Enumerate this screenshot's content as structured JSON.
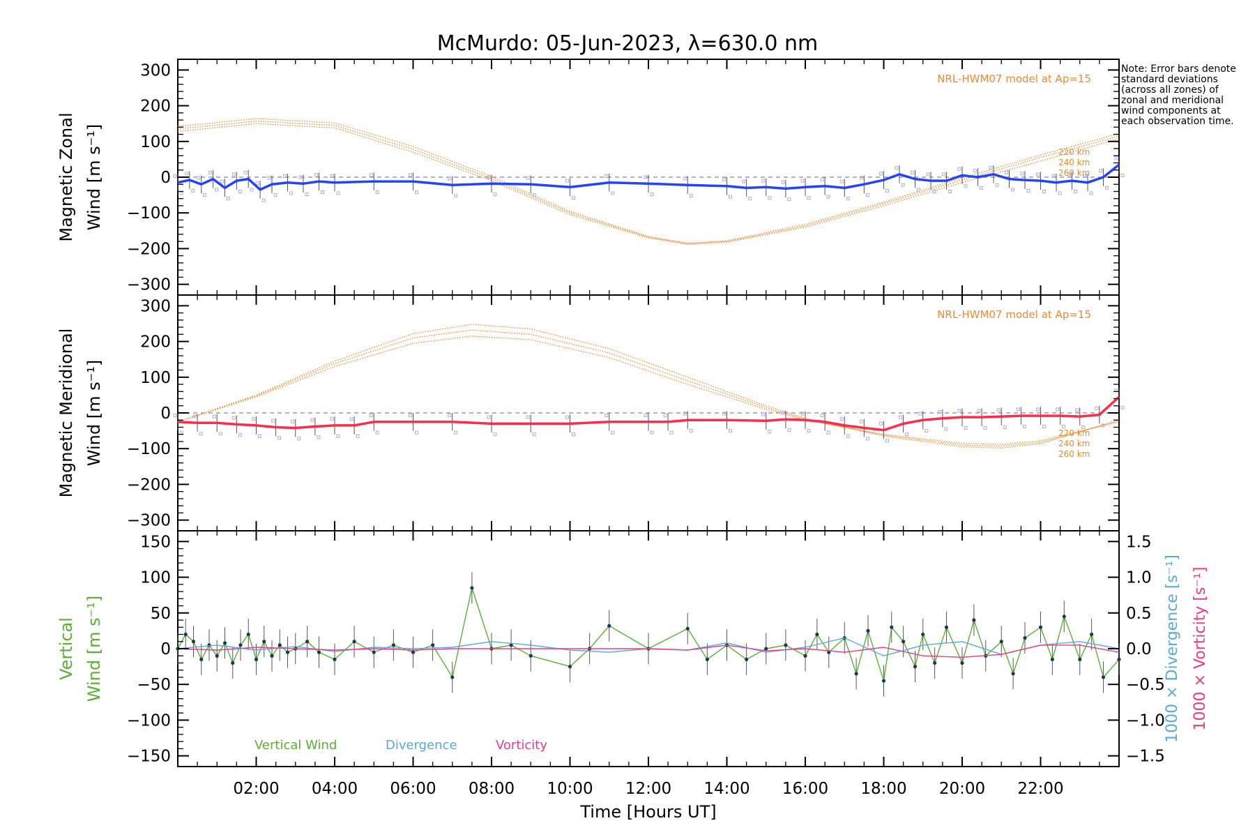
{
  "title": "McMurdo: 05-Jun-2023, λ=630.0 nm",
  "note": "Note: Error bars denote standard deviations (across all zones) of zonal and meridional wind components at each observation time.",
  "xlabel": "Time [Hours UT]",
  "colors": {
    "model": "#f08a30",
    "zonal": "#2244ff",
    "meridional": "#ff2b4a",
    "vertical": "#5ab033",
    "divergence": "#5aaad8",
    "vorticity": "#ee3a84",
    "zone_points": "#b0a8e0",
    "errorbar": "#555555"
  },
  "chart_data": [
    {
      "type": "line",
      "panel": "zonal",
      "ylabel_line1": "Magnetic Zonal",
      "ylabel_line2": "Wind [m s⁻¹]",
      "ylim": [
        -330,
        330
      ],
      "yticks": [
        -300,
        -200,
        -100,
        0,
        100,
        200,
        300
      ],
      "model_label": "NRL-HWM07 model at Ap=15",
      "model_alt_labels": [
        "220 km",
        "240 km",
        "260 km"
      ],
      "model": [
        {
          "name": "220 km",
          "x": [
            0,
            2,
            4,
            6,
            8,
            10,
            12,
            13,
            14,
            16,
            18,
            20,
            22,
            24
          ],
          "y": [
            128,
            150,
            138,
            70,
            -10,
            -105,
            -170,
            -188,
            -182,
            -140,
            -80,
            -15,
            45,
            108
          ]
        },
        {
          "name": "240 km",
          "x": [
            0,
            2,
            4,
            6,
            8,
            10,
            12,
            13,
            14,
            16,
            18,
            20,
            22,
            24
          ],
          "y": [
            135,
            157,
            145,
            78,
            -4,
            -100,
            -168,
            -186,
            -180,
            -136,
            -74,
            -8,
            55,
            115
          ]
        },
        {
          "name": "260 km",
          "x": [
            0,
            2,
            4,
            6,
            8,
            10,
            12,
            13,
            14,
            16,
            18,
            20,
            22,
            24
          ],
          "y": [
            142,
            164,
            152,
            86,
            2,
            -96,
            -166,
            -185,
            -178,
            -132,
            -70,
            -2,
            62,
            122
          ]
        }
      ],
      "series": [
        {
          "name": "Zonal wind",
          "x": [
            0.0,
            0.3,
            0.6,
            0.9,
            1.2,
            1.5,
            1.8,
            2.1,
            2.4,
            2.8,
            3.2,
            3.6,
            4.0,
            5.0,
            6.0,
            7.0,
            8.0,
            9.0,
            10.0,
            11.0,
            12.0,
            13.0,
            14.0,
            14.5,
            15.0,
            15.5,
            16.0,
            16.5,
            17.0,
            17.5,
            18.0,
            18.4,
            18.8,
            19.2,
            19.6,
            20.0,
            20.4,
            20.8,
            21.2,
            21.6,
            22.0,
            22.4,
            22.8,
            23.2,
            23.6,
            24.0
          ],
          "values": [
            -15,
            -8,
            -20,
            -5,
            -30,
            -10,
            -5,
            -35,
            -20,
            -15,
            -18,
            -12,
            -15,
            -12,
            -12,
            -22,
            -18,
            -20,
            -28,
            -15,
            -18,
            -22,
            -25,
            -30,
            -28,
            -32,
            -28,
            -25,
            -30,
            -20,
            -8,
            8,
            -5,
            -10,
            -10,
            5,
            0,
            8,
            -5,
            -8,
            -10,
            -15,
            -10,
            -15,
            0,
            35
          ]
        },
        {
          "name": "Model 220/240/260 km note",
          "x": [
            23.5
          ],
          "values": [
            0
          ]
        }
      ]
    },
    {
      "type": "line",
      "panel": "meridional",
      "ylabel_line1": "Magnetic Meridional",
      "ylabel_line2": "Wind [m s⁻¹]",
      "ylim": [
        -330,
        330
      ],
      "yticks": [
        -300,
        -200,
        -100,
        0,
        100,
        200,
        300
      ],
      "model_label": "NRL-HWM07 model at Ap=15",
      "model_alt_labels": [
        "220 km",
        "240 km",
        "260 km"
      ],
      "model": [
        {
          "name": "220 km",
          "x": [
            0,
            2,
            4,
            6,
            7.5,
            9,
            11,
            13,
            15,
            16,
            18,
            20,
            21,
            22,
            24
          ],
          "y": [
            -25,
            45,
            130,
            195,
            215,
            205,
            155,
            80,
            10,
            -20,
            -60,
            -85,
            -88,
            -78,
            -25
          ]
        },
        {
          "name": "240 km",
          "x": [
            0,
            2,
            4,
            6,
            7.5,
            9,
            11,
            13,
            15,
            16,
            18,
            20,
            21,
            22,
            24
          ],
          "y": [
            -25,
            48,
            138,
            210,
            232,
            220,
            168,
            90,
            15,
            -18,
            -62,
            -90,
            -93,
            -82,
            -22
          ]
        },
        {
          "name": "260 km",
          "x": [
            0,
            2,
            4,
            6,
            7.5,
            9,
            11,
            13,
            15,
            16,
            18,
            20,
            21,
            22,
            24
          ],
          "y": [
            -25,
            50,
            145,
            222,
            248,
            235,
            180,
            100,
            20,
            -15,
            -65,
            -95,
            -98,
            -86,
            -20
          ]
        }
      ],
      "series": [
        {
          "name": "Meridional wind",
          "x": [
            0.0,
            0.5,
            1.0,
            1.5,
            2.0,
            2.5,
            3.0,
            3.5,
            4.0,
            4.5,
            5.0,
            6.0,
            7.0,
            8.0,
            9.0,
            10.0,
            11.0,
            12.0,
            12.5,
            13.0,
            14.0,
            15.0,
            15.5,
            16.0,
            16.5,
            17.0,
            17.5,
            18.0,
            18.5,
            19.0,
            19.5,
            20.0,
            20.5,
            21.0,
            21.5,
            22.0,
            22.5,
            23.0,
            23.5,
            24.0
          ],
          "values": [
            -25,
            -28,
            -28,
            -32,
            -35,
            -40,
            -42,
            -38,
            -35,
            -35,
            -25,
            -25,
            -25,
            -30,
            -30,
            -30,
            -25,
            -25,
            -25,
            -20,
            -20,
            -22,
            -18,
            -20,
            -25,
            -35,
            -42,
            -48,
            -30,
            -20,
            -15,
            -12,
            -12,
            -10,
            -8,
            -8,
            -8,
            -10,
            -5,
            45
          ]
        }
      ]
    },
    {
      "type": "line",
      "panel": "vertical",
      "ylabel_line1": "Vertical",
      "ylabel_line2": "Wind [m s⁻¹]",
      "ylim": [
        -165,
        165
      ],
      "yticks": [
        -150,
        -100,
        -50,
        0,
        50,
        100,
        150
      ],
      "right_axis_label_1": "1000 × Divergence [s⁻¹]",
      "right_axis_label_2": "1000 × Vorticity [s⁻¹]",
      "right_ylim": [
        -1.65,
        1.65
      ],
      "right_yticks": [
        -1.5,
        -1.0,
        -0.5,
        0.0,
        0.5,
        1.0,
        1.5
      ],
      "right_ytick_labels": [
        "−1.5",
        "−1.0",
        "−0.5",
        "0.0",
        "0.5",
        "1.0",
        "1.5"
      ],
      "legend": [
        "Vertical Wind",
        "Divergence",
        "Vorticity"
      ],
      "series": [
        {
          "name": "Vertical Wind",
          "x": [
            0.0,
            0.2,
            0.4,
            0.6,
            0.8,
            1.0,
            1.2,
            1.4,
            1.6,
            1.8,
            2.0,
            2.2,
            2.4,
            2.6,
            2.8,
            3.0,
            3.3,
            3.6,
            4.0,
            4.5,
            5.0,
            5.5,
            6.0,
            6.5,
            7.0,
            7.5,
            8.0,
            8.5,
            9.0,
            10.0,
            10.5,
            11.0,
            12.0,
            13.0,
            13.5,
            14.0,
            14.5,
            15.0,
            15.5,
            16.0,
            16.3,
            16.6,
            17.0,
            17.3,
            17.6,
            18.0,
            18.2,
            18.5,
            18.8,
            19.0,
            19.3,
            19.6,
            20.0,
            20.3,
            20.6,
            21.0,
            21.3,
            21.6,
            22.0,
            22.3,
            22.6,
            23.0,
            23.3,
            23.6,
            24.0
          ],
          "values": [
            0,
            20,
            10,
            -15,
            5,
            -10,
            8,
            -20,
            5,
            20,
            -15,
            10,
            -10,
            5,
            -5,
            0,
            10,
            -5,
            -15,
            10,
            -5,
            5,
            -5,
            5,
            -40,
            85,
            0,
            5,
            -10,
            -25,
            0,
            32,
            0,
            28,
            -15,
            5,
            -15,
            0,
            5,
            -10,
            20,
            -5,
            15,
            -35,
            25,
            -45,
            30,
            10,
            -25,
            20,
            -20,
            30,
            -20,
            40,
            -10,
            10,
            -35,
            15,
            30,
            -15,
            45,
            -15,
            20,
            -40,
            -15
          ]
        },
        {
          "name": "Divergence",
          "x": [
            0,
            1,
            2,
            3,
            4,
            5,
            6,
            7,
            8,
            9,
            10,
            11,
            12,
            13,
            14,
            15,
            16,
            17,
            18,
            19,
            20,
            21,
            22,
            23,
            24
          ],
          "values": [
            0.0,
            0.05,
            -0.02,
            0.03,
            -0.04,
            0.02,
            0.0,
            0.02,
            0.1,
            0.05,
            -0.02,
            -0.05,
            0.0,
            -0.02,
            0.08,
            -0.05,
            0.02,
            0.15,
            -0.1,
            0.05,
            0.1,
            -0.08,
            0.05,
            0.1,
            0.0
          ]
        },
        {
          "name": "Vorticity",
          "x": [
            0,
            1,
            2,
            3,
            4,
            5,
            6,
            7,
            8,
            9,
            10,
            11,
            12,
            13,
            14,
            15,
            16,
            17,
            18,
            19,
            20,
            21,
            22,
            23,
            24
          ],
          "values": [
            0.0,
            -0.02,
            0.02,
            0.0,
            -0.02,
            0.0,
            -0.02,
            0.0,
            0.0,
            0.0,
            0.0,
            0.0,
            0.0,
            -0.02,
            0.05,
            -0.03,
            0.0,
            -0.05,
            0.02,
            -0.1,
            -0.12,
            -0.08,
            0.05,
            0.05,
            -0.05
          ]
        }
      ]
    }
  ],
  "xaxis": {
    "xlim": [
      0,
      24
    ],
    "xtick_values": [
      2,
      4,
      6,
      8,
      10,
      12,
      14,
      16,
      18,
      20,
      22
    ],
    "xtick_labels": [
      "02:00",
      "04:00",
      "06:00",
      "08:00",
      "10:00",
      "12:00",
      "14:00",
      "16:00",
      "18:00",
      "20:00",
      "22:00"
    ]
  }
}
